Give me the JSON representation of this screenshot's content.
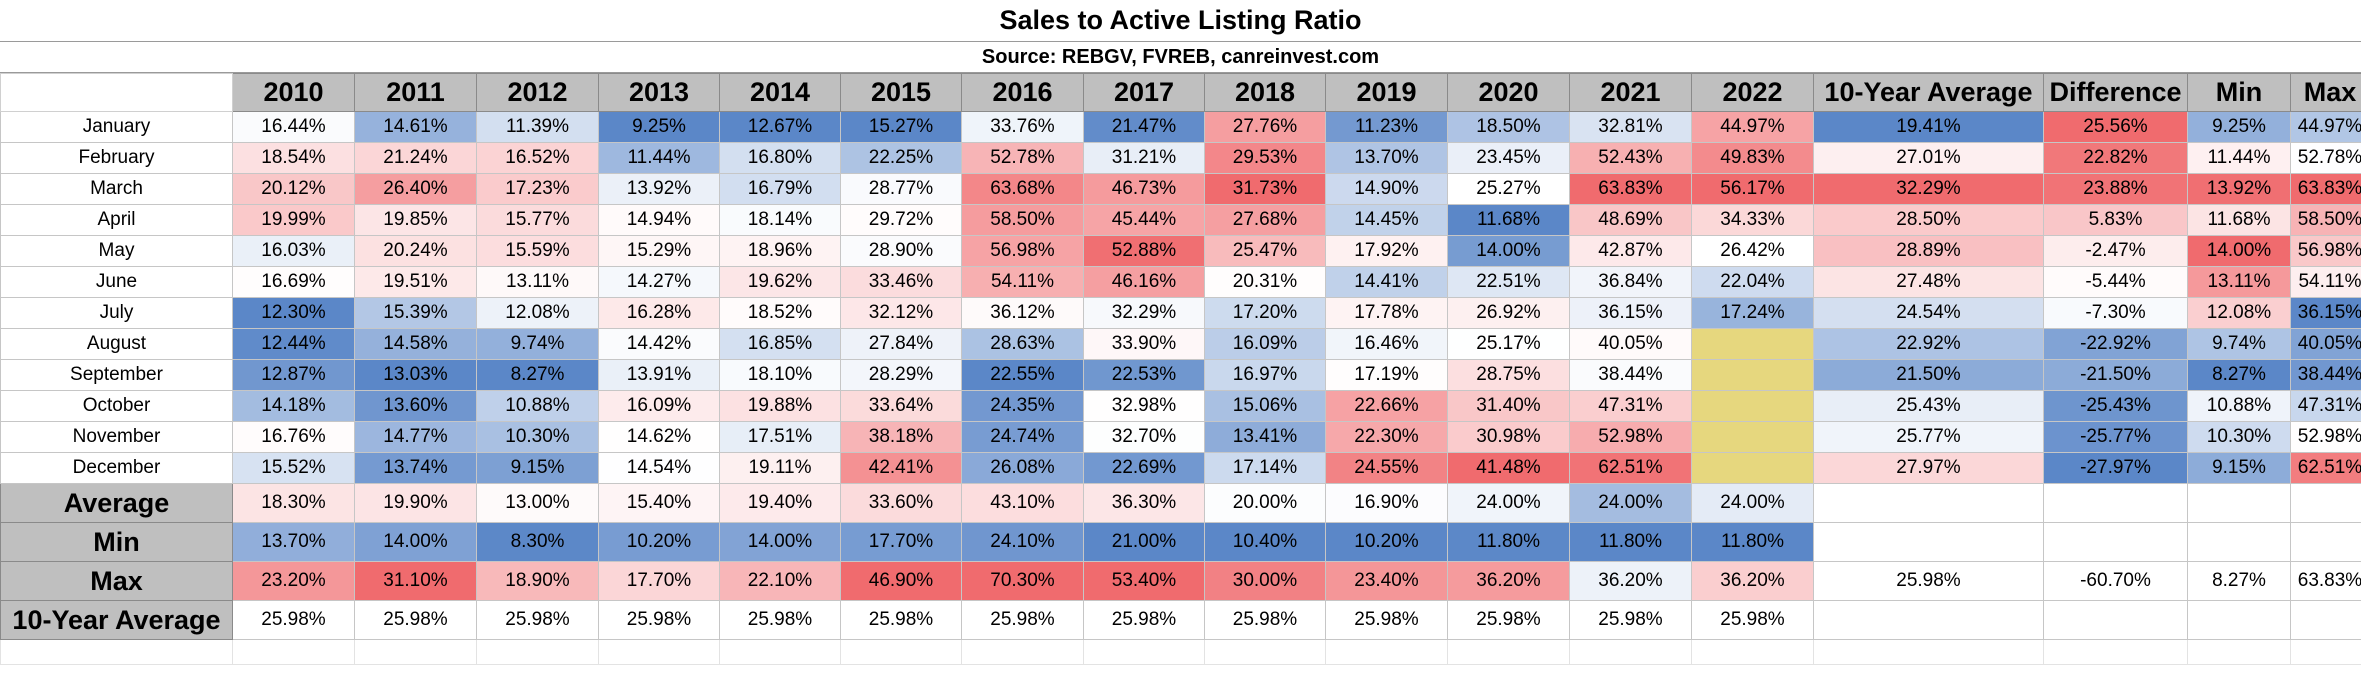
{
  "title": "Sales to Active Listing Ratio",
  "subtitle": "Source: REBGV, FVREB, canreinvest.com",
  "palette": {
    "low": "#5b87c8",
    "mid": "#ffffff",
    "high": "#f06b6e",
    "missing": "#e6d77e"
  },
  "chart_data": {
    "type": "table",
    "title": "Sales to Active Listing Ratio",
    "subtitle": "Source: REBGV, FVREB, canreinvest.com",
    "columns": [
      "2010",
      "2011",
      "2012",
      "2013",
      "2014",
      "2015",
      "2016",
      "2017",
      "2018",
      "2019",
      "2020",
      "2021",
      "2022",
      "10-Year Average",
      "Difference",
      "Min",
      "Max"
    ],
    "month_rows": [
      {
        "label": "January",
        "values": [
          16.44,
          14.61,
          11.39,
          9.25,
          12.67,
          15.27,
          33.76,
          21.47,
          27.76,
          11.23,
          18.5,
          32.81,
          44.97
        ],
        "avg": 19.41,
        "diff": 25.56,
        "min": 9.25,
        "max": 44.97
      },
      {
        "label": "February",
        "values": [
          18.54,
          21.24,
          16.52,
          11.44,
          16.8,
          22.25,
          52.78,
          31.21,
          29.53,
          13.7,
          23.45,
          52.43,
          49.83
        ],
        "avg": 27.01,
        "diff": 22.82,
        "min": 11.44,
        "max": 52.78
      },
      {
        "label": "March",
        "values": [
          20.12,
          26.4,
          17.23,
          13.92,
          16.79,
          28.77,
          63.68,
          46.73,
          31.73,
          14.9,
          25.27,
          63.83,
          56.17
        ],
        "avg": 32.29,
        "diff": 23.88,
        "min": 13.92,
        "max": 63.83
      },
      {
        "label": "April",
        "values": [
          19.99,
          19.85,
          15.77,
          14.94,
          18.14,
          29.72,
          58.5,
          45.44,
          27.68,
          14.45,
          11.68,
          48.69,
          34.33
        ],
        "avg": 28.5,
        "diff": 5.83,
        "min": 11.68,
        "max": 58.5
      },
      {
        "label": "May",
        "values": [
          16.03,
          20.24,
          15.59,
          15.29,
          18.96,
          28.9,
          56.98,
          52.88,
          25.47,
          17.92,
          14.0,
          42.87,
          26.42
        ],
        "avg": 28.89,
        "diff": -2.47,
        "min": 14.0,
        "max": 56.98
      },
      {
        "label": "June",
        "values": [
          16.69,
          19.51,
          13.11,
          14.27,
          19.62,
          33.46,
          54.11,
          46.16,
          20.31,
          14.41,
          22.51,
          36.84,
          22.04
        ],
        "avg": 27.48,
        "diff": -5.44,
        "min": 13.11,
        "max": 54.11
      },
      {
        "label": "July",
        "values": [
          12.3,
          15.39,
          12.08,
          16.28,
          18.52,
          32.12,
          36.12,
          32.29,
          17.2,
          17.78,
          26.92,
          36.15,
          17.24
        ],
        "avg": 24.54,
        "diff": -7.3,
        "min": 12.08,
        "max": 36.15
      },
      {
        "label": "August",
        "values": [
          12.44,
          14.58,
          9.74,
          14.42,
          16.85,
          27.84,
          28.63,
          33.9,
          16.09,
          16.46,
          25.17,
          40.05,
          null
        ],
        "avg": 22.92,
        "diff": -22.92,
        "min": 9.74,
        "max": 40.05
      },
      {
        "label": "September",
        "values": [
          12.87,
          13.03,
          8.27,
          13.91,
          18.1,
          28.29,
          22.55,
          22.53,
          16.97,
          17.19,
          28.75,
          38.44,
          null
        ],
        "avg": 21.5,
        "diff": -21.5,
        "min": 8.27,
        "max": 38.44
      },
      {
        "label": "October",
        "values": [
          14.18,
          13.6,
          10.88,
          16.09,
          19.88,
          33.64,
          24.35,
          32.98,
          15.06,
          22.66,
          31.4,
          47.31,
          null
        ],
        "avg": 25.43,
        "diff": -25.43,
        "min": 10.88,
        "max": 47.31
      },
      {
        "label": "November",
        "values": [
          16.76,
          14.77,
          10.3,
          14.62,
          17.51,
          38.18,
          24.74,
          32.7,
          13.41,
          22.3,
          30.98,
          52.98,
          null
        ],
        "avg": 25.77,
        "diff": -25.77,
        "min": 10.3,
        "max": 52.98
      },
      {
        "label": "December",
        "values": [
          15.52,
          13.74,
          9.15,
          14.54,
          19.11,
          42.41,
          26.08,
          22.69,
          17.14,
          24.55,
          41.48,
          62.51,
          null
        ],
        "avg": 27.97,
        "diff": -27.97,
        "min": 9.15,
        "max": 62.51
      }
    ],
    "summary_rows": [
      {
        "label": "Average",
        "values": [
          18.3,
          19.9,
          13.0,
          15.4,
          19.4,
          33.6,
          43.1,
          36.3,
          20.0,
          16.9,
          24.0,
          24.0,
          24.0
        ],
        "avg": null,
        "diff": null,
        "min": null,
        "max": null
      },
      {
        "label": "Min",
        "values": [
          13.7,
          14.0,
          8.3,
          10.2,
          14.0,
          17.7,
          24.1,
          21.0,
          10.4,
          10.2,
          11.8,
          11.8,
          11.8
        ],
        "avg": null,
        "diff": null,
        "min": null,
        "max": null
      },
      {
        "label": "Max",
        "values": [
          23.2,
          31.1,
          18.9,
          17.7,
          22.1,
          46.9,
          70.3,
          53.4,
          30.0,
          23.4,
          36.2,
          36.2,
          36.2
        ],
        "avg": 25.98,
        "diff": -60.7,
        "min": 8.27,
        "max": 63.83
      },
      {
        "label": "10-Year Average",
        "values": [
          25.98,
          25.98,
          25.98,
          25.98,
          25.98,
          25.98,
          25.98,
          25.98,
          25.98,
          25.98,
          25.98,
          25.98,
          25.98
        ],
        "avg": null,
        "diff": null,
        "min": null,
        "max": null
      }
    ],
    "unit": "%"
  }
}
